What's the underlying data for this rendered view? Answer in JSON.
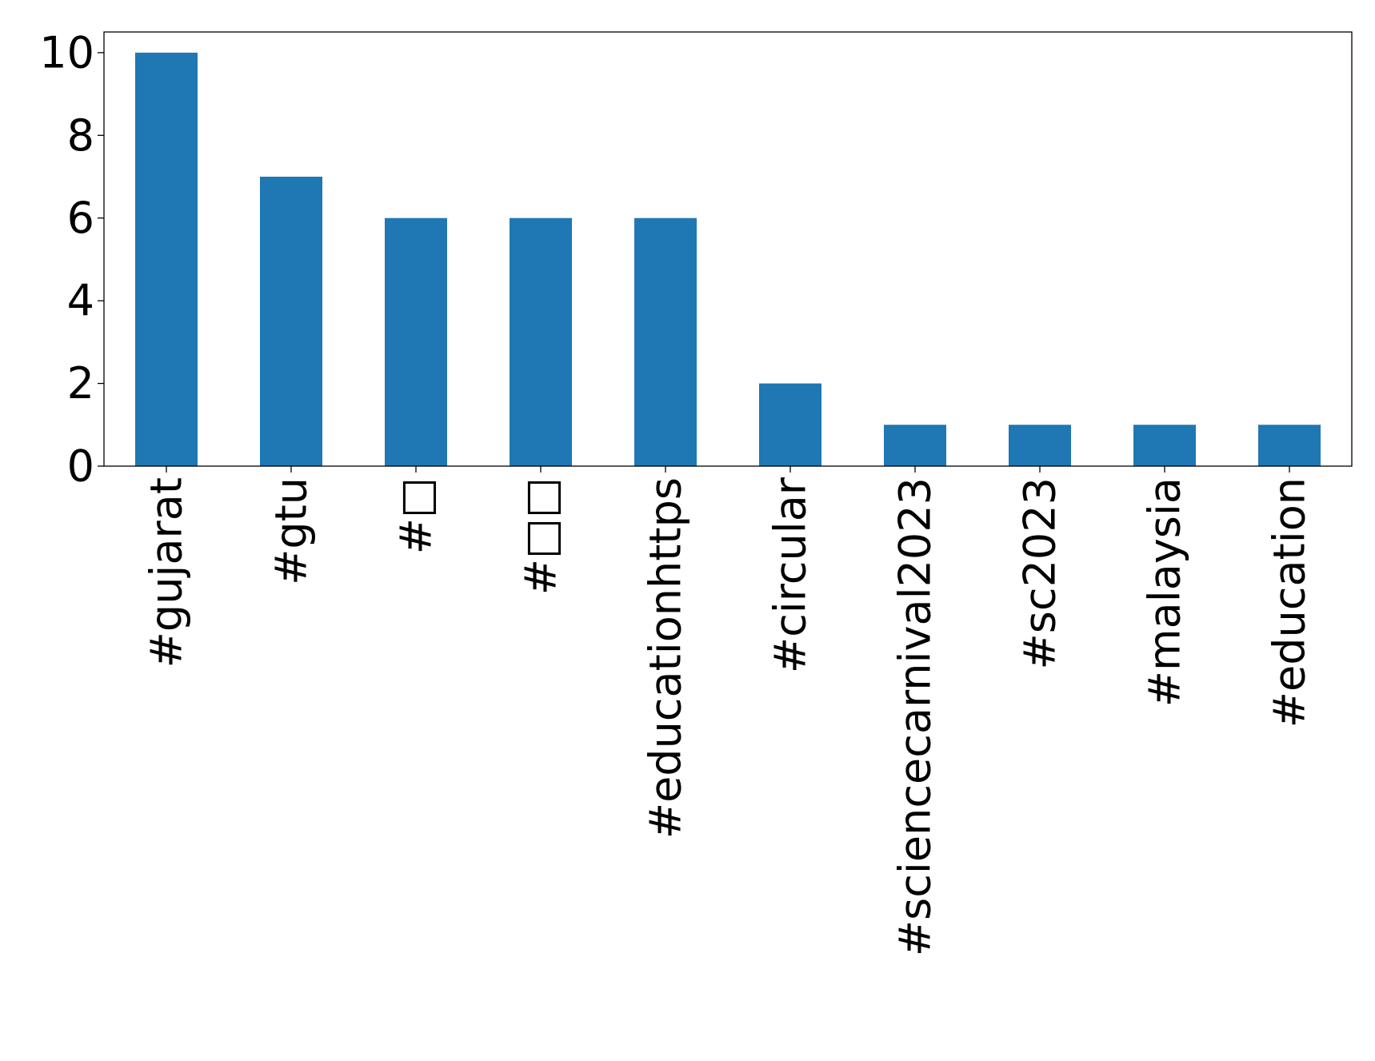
{
  "chart_data": {
    "type": "bar",
    "title": "",
    "xlabel": "",
    "ylabel": "",
    "categories": [
      "#gujarat",
      "#gtu",
      "#□",
      "#□□",
      "#educationhttps",
      "#circular",
      "#sciencecarnival2023",
      "#sc2023",
      "#malaysia",
      "#education"
    ],
    "values": [
      10,
      7,
      6,
      6,
      6,
      2,
      1,
      1,
      1,
      1
    ],
    "ylim": [
      0,
      10.5
    ],
    "yticks": [
      "0",
      "2",
      "4",
      "6",
      "8",
      "10"
    ],
    "grid": false,
    "legend": "none",
    "bar_color": "#1f77b4"
  }
}
